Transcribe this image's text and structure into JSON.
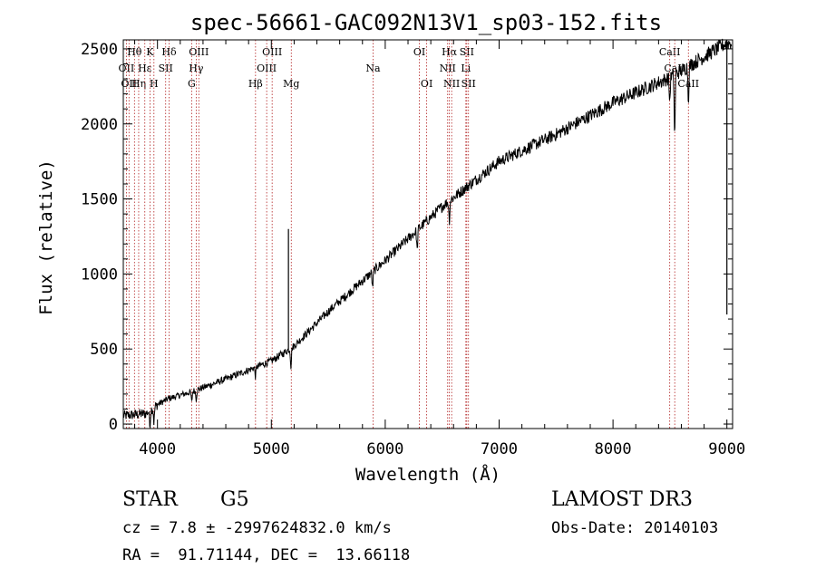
{
  "chart_data": {
    "type": "line",
    "title": "spec-56661-GAC092N13V1_sp03-152.fits",
    "xlabel": "Wavelength (Å)",
    "ylabel": "Flux (relative)",
    "xlim": [
      3700,
      9050
    ],
    "ylim": [
      -30,
      2560
    ],
    "xticks": [
      4000,
      5000,
      6000,
      7000,
      8000,
      9000
    ],
    "xtick_labels": [
      "4000",
      "5000",
      "6000",
      "7000",
      "8000",
      "9000"
    ],
    "yticks": [
      0,
      500,
      1000,
      1500,
      2000,
      2500
    ],
    "ytick_labels": [
      "0",
      "500",
      "1000",
      "1500",
      "2000",
      "2500"
    ],
    "series": [
      {
        "name": "spectrum",
        "continuum": {
          "x": [
            3700,
            3900,
            4000,
            4100,
            4300,
            4500,
            5000,
            5200,
            5500,
            6000,
            6500,
            7000,
            7500,
            8000,
            8500,
            9000
          ],
          "y": [
            55,
            70,
            130,
            170,
            215,
            270,
            420,
            520,
            750,
            1090,
            1450,
            1750,
            1930,
            2140,
            2310,
            2540
          ]
        },
        "features": [
          {
            "x": 3934,
            "depth": 110
          },
          {
            "x": 3969,
            "depth": 100
          },
          {
            "x": 4300,
            "depth": 70
          },
          {
            "x": 4340,
            "depth": 60
          },
          {
            "x": 4861,
            "depth": 60
          },
          {
            "x": 5172,
            "depth": 120
          },
          {
            "x": 5889,
            "depth": 110
          },
          {
            "x": 6280,
            "depth": 140
          },
          {
            "x": 6563,
            "depth": 130
          },
          {
            "x": 8498,
            "depth": 160
          },
          {
            "x": 8542,
            "depth": 420
          },
          {
            "x": 8662,
            "depth": 220
          }
        ],
        "spikes": [
          {
            "x": 5150,
            "height": 1300
          },
          {
            "x": 9000,
            "height": 730
          }
        ]
      }
    ],
    "lines": [
      {
        "x": 3727,
        "label": "OII",
        "row": 1
      },
      {
        "x": 3750,
        "label": "OII",
        "row": 2
      },
      {
        "x": 3798,
        "label": "Hθ",
        "row": 0
      },
      {
        "x": 3835,
        "label": "Hη",
        "row": 2
      },
      {
        "x": 3889,
        "label": "Hε",
        "row": 1
      },
      {
        "x": 3934,
        "label": "K",
        "row": 0
      },
      {
        "x": 3969,
        "label": "H",
        "row": 2
      },
      {
        "x": 4072,
        "label": "SII",
        "row": 1
      },
      {
        "x": 4102,
        "label": "Hδ",
        "row": 0
      },
      {
        "x": 4300,
        "label": "G",
        "row": 2
      },
      {
        "x": 4340,
        "label": "Hγ",
        "row": 1
      },
      {
        "x": 4363,
        "label": "OIII",
        "row": 0
      },
      {
        "x": 4861,
        "label": "Hβ",
        "row": 2
      },
      {
        "x": 4959,
        "label": "OIII",
        "row": 1
      },
      {
        "x": 5007,
        "label": "OIII",
        "row": 0
      },
      {
        "x": 5175,
        "label": "Mg",
        "row": 2
      },
      {
        "x": 5893,
        "label": "Na",
        "row": 1
      },
      {
        "x": 6300,
        "label": "OI",
        "row": 0
      },
      {
        "x": 6364,
        "label": "OI",
        "row": 2
      },
      {
        "x": 6548,
        "label": "NII",
        "row": 1
      },
      {
        "x": 6563,
        "label": "Hα",
        "row": 0
      },
      {
        "x": 6583,
        "label": "NII",
        "row": 2
      },
      {
        "x": 6708,
        "label": "Li",
        "row": 1
      },
      {
        "x": 6716,
        "label": "SII",
        "row": 0
      },
      {
        "x": 6731,
        "label": "SII",
        "row": 2
      },
      {
        "x": 8498,
        "label": "CaII",
        "row": 0
      },
      {
        "x": 8542,
        "label": "CaII",
        "row": 1
      },
      {
        "x": 8662,
        "label": "CaII",
        "row": 2
      }
    ],
    "line_color": "#b22222",
    "spectrum_color": "#000000"
  },
  "info": {
    "class_label": "STAR",
    "subclass_label": "G5",
    "survey_label": "LAMOST DR3",
    "cz_label": "cz = 7.8 ± -2997624832.0 km/s",
    "obsdate_label": "Obs-Date: 20140103",
    "radec_label": "RA =  91.71144, DEC =  13.66118"
  }
}
